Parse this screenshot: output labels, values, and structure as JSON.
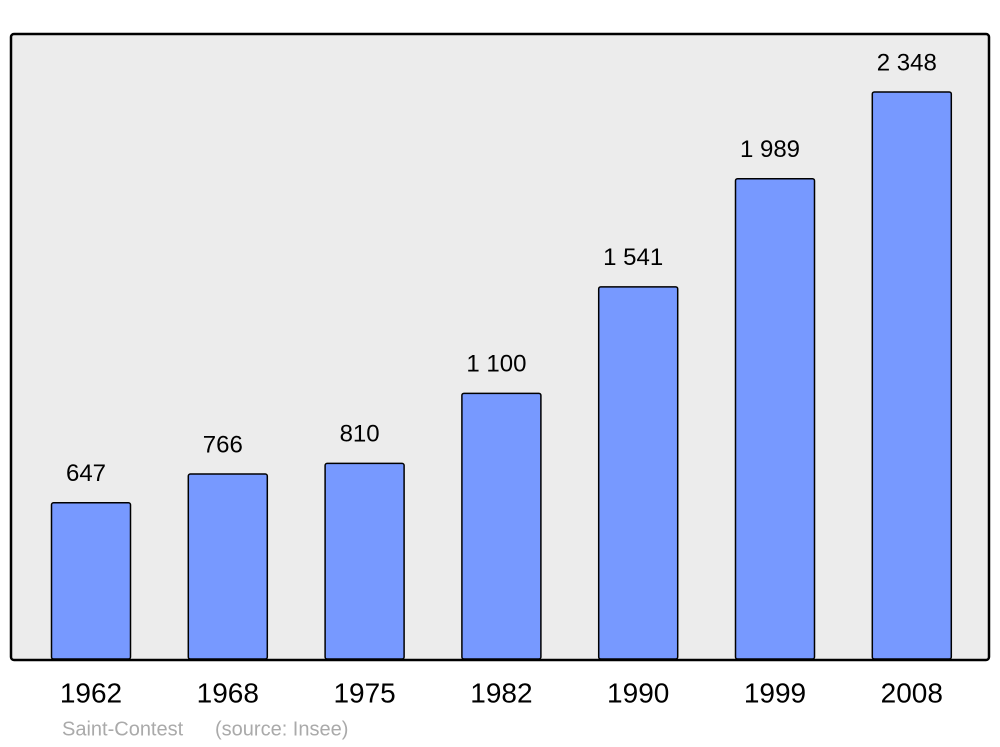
{
  "chart_data": {
    "type": "bar",
    "categories": [
      "1962",
      "1968",
      "1975",
      "1982",
      "1990",
      "1999",
      "2008"
    ],
    "values": [
      647,
      766,
      810,
      1100,
      1541,
      1989,
      2348
    ],
    "value_labels": [
      "647",
      "766",
      "810",
      "1 100",
      "1 541",
      "1 989",
      "2 348"
    ],
    "color": "#7799ff",
    "note": "Saint-Contest",
    "source": "(source: Insee)"
  }
}
